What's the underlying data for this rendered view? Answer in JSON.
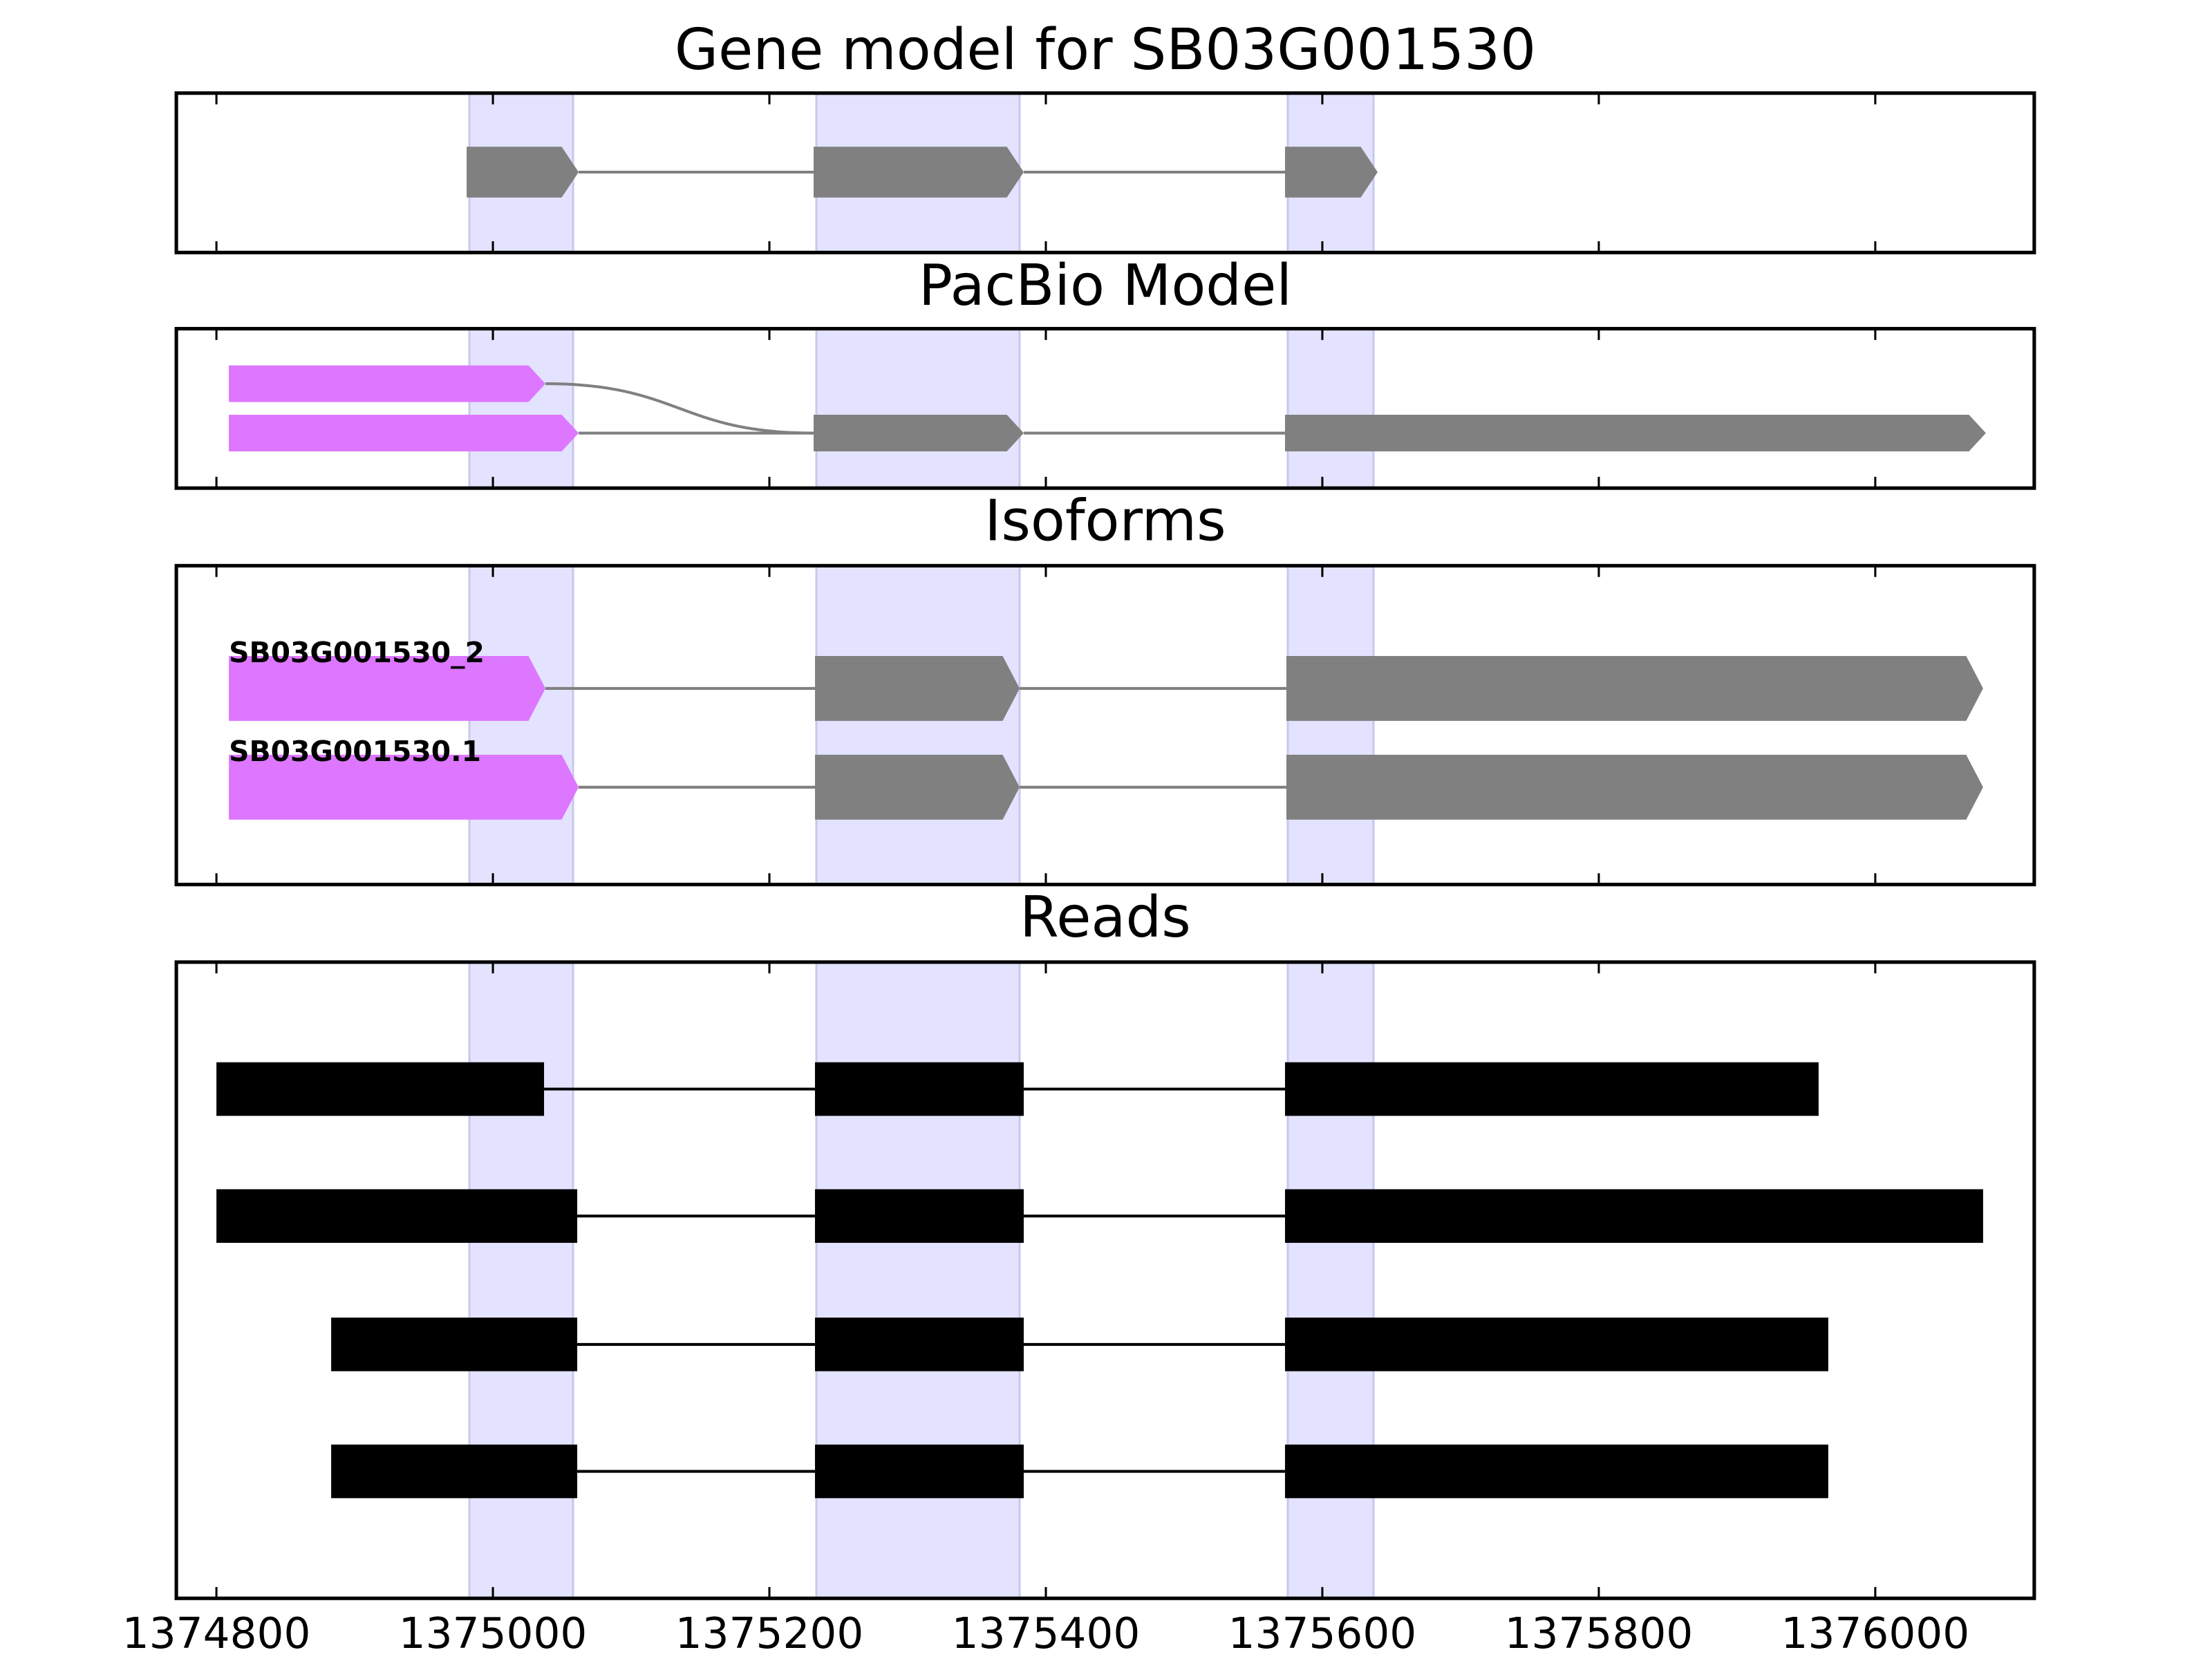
{
  "chart_data": [
    {
      "type": "gene",
      "title": "Gene model for SB03G001530",
      "xlim": [
        1374771,
        1376115
      ],
      "xticks": [
        1374800,
        1375000,
        1375200,
        1375400,
        1375600,
        1375800,
        1376000
      ],
      "highlights": [
        [
          1374983,
          1375058
        ],
        [
          1375234,
          1375381
        ],
        [
          1375575,
          1375637
        ]
      ],
      "highlight_color": "#e3e3ff",
      "arrows": true,
      "intron_color": "#808080",
      "transcripts": [
        {
          "exons": [
            [
              1374981,
              1375062
            ],
            [
              1375232,
              1375384
            ],
            [
              1375573,
              1375640
            ]
          ],
          "colors": [
            "#808080",
            "#808080",
            "#808080"
          ]
        }
      ]
    },
    {
      "type": "gene",
      "title": "PacBio Model",
      "xlim": [
        1374771,
        1376115
      ],
      "xticks": [
        1374800,
        1375000,
        1375200,
        1375400,
        1375600,
        1375800,
        1376000
      ],
      "highlights": [
        [
          1374983,
          1375058
        ],
        [
          1375234,
          1375381
        ],
        [
          1375575,
          1375637
        ]
      ],
      "highlight_color": "#e3e3ff",
      "arrows": true,
      "intron_color": "#808080",
      "transcripts": [
        {
          "exons": [
            [
              1374809,
              1375038
            ]
          ],
          "colors": [
            "#dd77ff"
          ],
          "merge": {
            "row": 1,
            "exon": 1
          }
        },
        {
          "exons": [
            [
              1374809,
              1375062
            ],
            [
              1375232,
              1375384
            ],
            [
              1375573,
              1376080
            ]
          ],
          "colors": [
            "#dd77ff",
            "#808080",
            "#808080"
          ]
        }
      ]
    },
    {
      "type": "gene",
      "title": "Isoforms",
      "xlim": [
        1374771,
        1376115
      ],
      "xticks": [
        1374800,
        1375000,
        1375200,
        1375400,
        1375600,
        1375800,
        1376000
      ],
      "highlights": [
        [
          1374983,
          1375058
        ],
        [
          1375234,
          1375381
        ],
        [
          1375575,
          1375637
        ]
      ],
      "highlight_color": "#e3e3ff",
      "arrows": true,
      "intron_color": "#808080",
      "transcripts": [
        {
          "name": "SB03G001530_2",
          "exons": [
            [
              1374809,
              1375038
            ],
            [
              1375233,
              1375381
            ],
            [
              1375574,
              1376078
            ]
          ],
          "colors": [
            "#dd77ff",
            "#808080",
            "#808080"
          ]
        },
        {
          "name": "SB03G001530.1",
          "exons": [
            [
              1374809,
              1375062
            ],
            [
              1375233,
              1375381
            ],
            [
              1375574,
              1376078
            ]
          ],
          "colors": [
            "#dd77ff",
            "#808080",
            "#808080"
          ]
        }
      ]
    },
    {
      "type": "gene",
      "title": "Reads",
      "xlim": [
        1374771,
        1376115
      ],
      "xticks": [
        1374800,
        1375000,
        1375200,
        1375400,
        1375600,
        1375800,
        1376000
      ],
      "tick_labels": true,
      "highlights": [
        [
          1374983,
          1375058
        ],
        [
          1375234,
          1375381
        ],
        [
          1375575,
          1375637
        ]
      ],
      "highlight_color": "#e3e3ff",
      "arrows": false,
      "intron_color": "#000000",
      "transcripts": [
        {
          "exons": [
            [
              1374800,
              1375037
            ],
            [
              1375233,
              1375384
            ],
            [
              1375573,
              1375959
            ]
          ],
          "colors": [
            "#000000",
            "#000000",
            "#000000"
          ]
        },
        {
          "exons": [
            [
              1374800,
              1375061
            ],
            [
              1375233,
              1375384
            ],
            [
              1375573,
              1376078
            ]
          ],
          "colors": [
            "#000000",
            "#000000",
            "#000000"
          ]
        },
        {
          "exons": [
            [
              1374883,
              1375061
            ],
            [
              1375233,
              1375384
            ],
            [
              1375573,
              1375966
            ]
          ],
          "colors": [
            "#000000",
            "#000000",
            "#000000"
          ]
        },
        {
          "exons": [
            [
              1374883,
              1375061
            ],
            [
              1375233,
              1375384
            ],
            [
              1375573,
              1375966
            ]
          ],
          "colors": [
            "#000000",
            "#000000",
            "#000000"
          ]
        }
      ]
    }
  ]
}
